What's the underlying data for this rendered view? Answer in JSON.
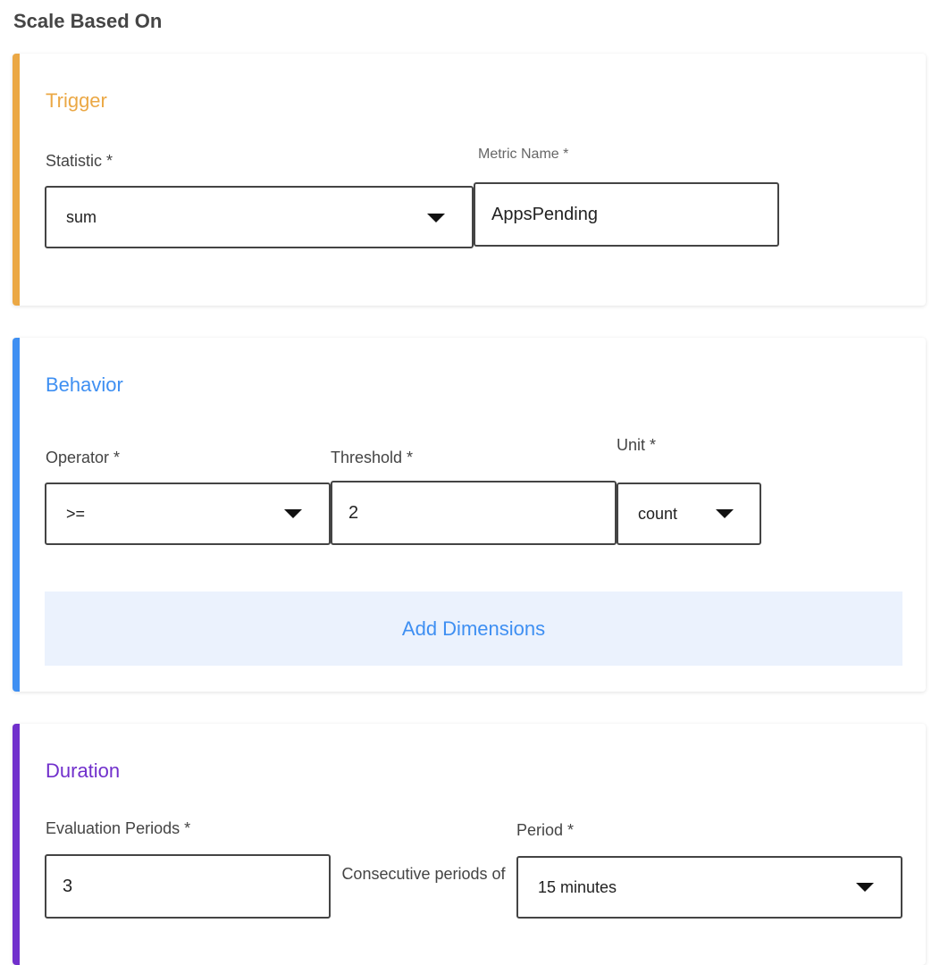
{
  "title": "Scale Based On",
  "colors": {
    "trigger": "#eba845",
    "behavior": "#3e8ff2",
    "duration": "#7130cc"
  },
  "trigger": {
    "heading": "Trigger",
    "statistic_label": "Statistic *",
    "statistic_value": "sum",
    "metric_label": "Metric Name *",
    "metric_value": "AppsPending"
  },
  "behavior": {
    "heading": "Behavior",
    "operator_label": "Operator *",
    "operator_value": ">=",
    "threshold_label": "Threshold *",
    "threshold_value": "2",
    "unit_label": "Unit *",
    "unit_value": "count",
    "add_dimensions": "Add Dimensions"
  },
  "duration": {
    "heading": "Duration",
    "eval_label": "Evaluation Periods *",
    "eval_value": "3",
    "consecutive_text": "Consecutive periods of",
    "period_label": "Period *",
    "period_value": "15 minutes"
  },
  "icons": {
    "dropdown": "caret-down-icon"
  }
}
